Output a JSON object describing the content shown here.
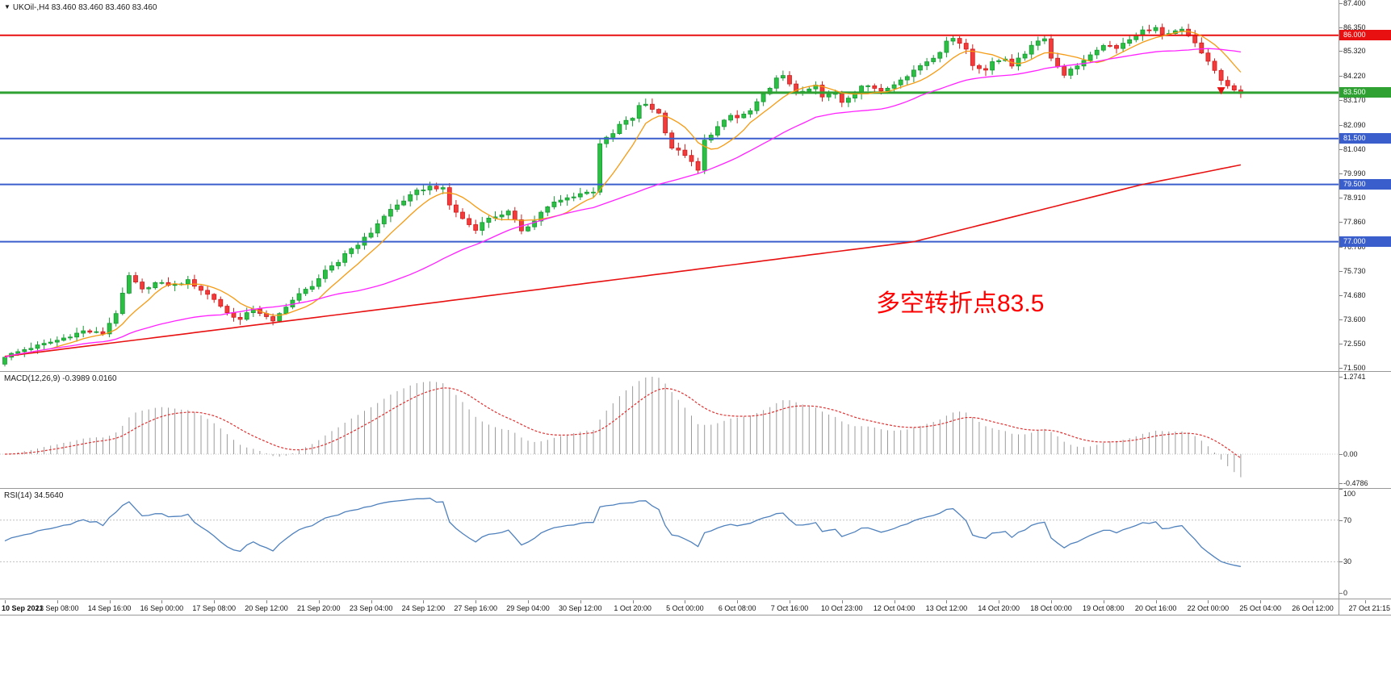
{
  "window": {
    "background": "#ffffff"
  },
  "symbol_header": {
    "marker": "▼"
  },
  "chart_data": [
    {
      "type": "candlestick",
      "title": "UKOil-,H4",
      "ohlc_quote": "83.460 83.460 83.460 83.460",
      "ylim": [
        71.5,
        87.4
      ],
      "price_axis_labels": [
        "87.400",
        "86.350",
        "85.320",
        "84.220",
        "83.170",
        "82.090",
        "81.040",
        "79.990",
        "78.910",
        "77.860",
        "76.780",
        "75.730",
        "74.680",
        "73.600",
        "72.550",
        "71.500"
      ],
      "time_axis_labels": [
        "10 Sep 2021",
        "13 Sep 08:00",
        "14 Sep 16:00",
        "16 Sep 00:00",
        "17 Sep 08:00",
        "20 Sep 12:00",
        "21 Sep 20:00",
        "23 Sep 04:00",
        "24 Sep 12:00",
        "27 Sep 16:00",
        "29 Sep 04:00",
        "30 Sep 12:00",
        "1 Oct 20:00",
        "5 Oct 00:00",
        "6 Oct 08:00",
        "7 Oct 16:00",
        "10 Oct 23:00",
        "12 Oct 04:00",
        "13 Oct 12:00",
        "14 Oct 20:00",
        "18 Oct 00:00",
        "19 Oct 08:00",
        "20 Oct 16:00",
        "22 Oct 00:00",
        "25 Oct 04:00",
        "26 Oct 12:00",
        "27 Oct 21:15"
      ],
      "candle_count": 190,
      "up_color": "#2bbf43",
      "down_color": "#f23b3b",
      "close_path_anchors": [
        [
          0,
          72.0
        ],
        [
          3,
          72.3
        ],
        [
          8,
          72.7
        ],
        [
          12,
          73.1
        ],
        [
          15,
          73.0
        ],
        [
          17,
          73.9
        ],
        [
          19,
          75.5
        ],
        [
          21,
          74.9
        ],
        [
          23,
          75.2
        ],
        [
          26,
          75.1
        ],
        [
          28,
          75.3
        ],
        [
          30,
          74.9
        ],
        [
          32,
          74.5
        ],
        [
          34,
          73.9
        ],
        [
          36,
          73.6
        ],
        [
          38,
          74.1
        ],
        [
          40,
          73.7
        ],
        [
          41,
          73.5
        ],
        [
          43,
          74.2
        ],
        [
          45,
          74.7
        ],
        [
          47,
          75.1
        ],
        [
          49,
          75.7
        ],
        [
          51,
          76.1
        ],
        [
          52,
          76.5
        ],
        [
          54,
          76.9
        ],
        [
          56,
          77.4
        ],
        [
          57,
          77.8
        ],
        [
          59,
          78.4
        ],
        [
          61,
          78.8
        ],
        [
          63,
          79.2
        ],
        [
          65,
          79.4
        ],
        [
          67,
          79.3
        ],
        [
          68,
          78.6
        ],
        [
          70,
          78.0
        ],
        [
          72,
          77.5
        ],
        [
          73,
          77.9
        ],
        [
          75,
          78.1
        ],
        [
          77,
          78.3
        ],
        [
          79,
          77.5
        ],
        [
          81,
          77.9
        ],
        [
          82,
          78.3
        ],
        [
          84,
          78.7
        ],
        [
          86,
          78.9
        ],
        [
          88,
          79.1
        ],
        [
          90,
          79.2
        ],
        [
          91,
          81.3
        ],
        [
          93,
          81.7
        ],
        [
          94,
          82.1
        ],
        [
          96,
          82.4
        ],
        [
          97,
          82.9
        ],
        [
          98,
          83.0
        ],
        [
          100,
          82.6
        ],
        [
          101,
          81.8
        ],
        [
          102,
          81.1
        ],
        [
          104,
          80.8
        ],
        [
          106,
          80.1
        ],
        [
          107,
          81.4
        ],
        [
          109,
          82.0
        ],
        [
          111,
          82.5
        ],
        [
          112,
          82.4
        ],
        [
          114,
          82.7
        ],
        [
          116,
          83.4
        ],
        [
          118,
          84.1
        ],
        [
          119,
          84.2
        ],
        [
          121,
          83.6
        ],
        [
          122,
          83.5
        ],
        [
          124,
          83.8
        ],
        [
          125,
          83.3
        ],
        [
          127,
          83.5
        ],
        [
          128,
          83.1
        ],
        [
          130,
          83.5
        ],
        [
          131,
          83.8
        ],
        [
          133,
          83.7
        ],
        [
          134,
          83.6
        ],
        [
          136,
          83.9
        ],
        [
          138,
          84.2
        ],
        [
          139,
          84.5
        ],
        [
          141,
          84.9
        ],
        [
          143,
          85.2
        ],
        [
          144,
          85.8
        ],
        [
          145,
          85.9
        ],
        [
          147,
          85.4
        ],
        [
          148,
          84.7
        ],
        [
          150,
          84.5
        ],
        [
          151,
          84.8
        ],
        [
          153,
          85.0
        ],
        [
          154,
          84.7
        ],
        [
          156,
          85.2
        ],
        [
          157,
          85.6
        ],
        [
          159,
          85.9
        ],
        [
          160,
          85.0
        ],
        [
          162,
          84.3
        ],
        [
          163,
          84.5
        ],
        [
          165,
          84.9
        ],
        [
          167,
          85.3
        ],
        [
          168,
          85.6
        ],
        [
          170,
          85.4
        ],
        [
          171,
          85.7
        ],
        [
          173,
          86.0
        ],
        [
          174,
          86.2
        ],
        [
          176,
          86.3
        ],
        [
          177,
          86.0
        ],
        [
          179,
          86.2
        ],
        [
          180,
          86.3
        ],
        [
          182,
          85.7
        ],
        [
          183,
          85.2
        ],
        [
          185,
          84.5
        ],
        [
          186,
          84.0
        ],
        [
          188,
          83.6
        ],
        [
          189,
          83.46
        ]
      ],
      "moving_averages": [
        {
          "name": "ma-fast",
          "color": "#f59b14",
          "period": 8
        },
        {
          "name": "ma-mid",
          "color": "#ff22ff",
          "period": 34
        },
        {
          "name": "ma-slow",
          "color": "#e81010",
          "anchors": [
            [
              0,
              72.0
            ],
            [
              70,
              74.5
            ],
            [
              139,
              77.0
            ],
            [
              174,
              79.5
            ],
            [
              189,
              80.35
            ]
          ]
        }
      ],
      "hlines": [
        {
          "price": 86.0,
          "color": "#e81010",
          "width": 2,
          "label": "86.000"
        },
        {
          "price": 83.5,
          "color": "#2fa133",
          "width": 3,
          "label": "83.500"
        },
        {
          "price": 81.5,
          "color": "#3a5fcd",
          "width": 2,
          "label": "81.500"
        },
        {
          "price": 79.5,
          "color": "#3a5fcd",
          "width": 2,
          "label": "79.500"
        },
        {
          "price": 77.0,
          "color": "#3a5fcd",
          "width": 2,
          "label": "77.000"
        }
      ],
      "price_marker": {
        "shape": "triangle-down",
        "color": "#e81010",
        "price": 83.42
      },
      "annotation": {
        "text": "多空转折点83.5",
        "color": "#ff0000"
      }
    },
    {
      "type": "bar",
      "name": "MACD",
      "label": "MACD(12,26,9)",
      "values_label": "-0.3989 0.0160",
      "fast": 12,
      "slow": 26,
      "signal": 9,
      "axis_labels": [
        "1.2741",
        "0.00",
        "-0.4786"
      ],
      "axis_values": [
        1.2741,
        0,
        -0.4786
      ],
      "ylim": [
        -0.4786,
        1.2741
      ],
      "bar_color": "#9b9b9b",
      "signal_color": "#e03030"
    },
    {
      "type": "line",
      "name": "RSI",
      "label": "RSI(14)",
      "value_label": "34.5640",
      "period": 14,
      "levels": [
        70,
        30
      ],
      "axis_labels": [
        "100",
        "70",
        "30",
        "0"
      ],
      "axis_values": [
        100,
        70,
        30,
        0
      ],
      "ylim": [
        0,
        100
      ],
      "line_color": "#4f81bd",
      "level_color": "#c0c0c0"
    }
  ]
}
